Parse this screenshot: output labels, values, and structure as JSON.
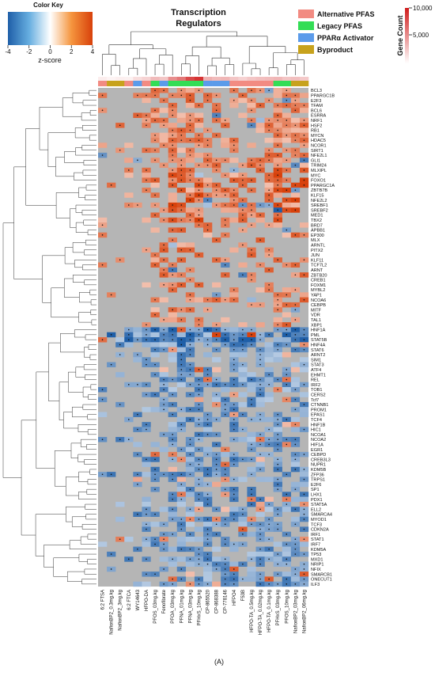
{
  "chart_data": {
    "type": "heatmap",
    "title": "Transcription Regulators",
    "panel_label": "(A)",
    "color_key": {
      "title": "Color Key",
      "label": "z-score",
      "ticks": [
        "-4",
        "-2",
        "0",
        "2",
        "4"
      ],
      "range": [
        -4,
        4
      ],
      "low_color": "#1f5fa8",
      "mid_color": "#ffffff",
      "high_color": "#d8410b"
    },
    "na_color": "#b5b5b5",
    "gene_count": {
      "label": "Gene Count",
      "ticks": [
        "10,000",
        "5,000"
      ],
      "color": "#d01c1c"
    },
    "legend": [
      {
        "label": "Alternative PFAS",
        "color": "#f28b82"
      },
      {
        "label": "Legacy PFAS",
        "color": "#33dd55"
      },
      {
        "label": "PPARα Activator",
        "color": "#5b9bea"
      },
      {
        "label": "Byproduct",
        "color": "#c7a21c"
      }
    ],
    "columns": [
      "6:2 FTSA",
      "NafionBP2_0.3mg.kg",
      "NafionBP2_3mg.kg",
      "6:2 FTCA",
      "WY14643",
      "HFPO-DA",
      "PFOS_03mg.kg",
      "Fenofibrate",
      "PFOA_03mg.kg",
      "PFNA_01mg.kg",
      "PFNA_03mg.kg",
      "PFHxS_10mg.kg",
      "CP-865520",
      "CP-868388",
      "CP-778146",
      "HFPO4",
      "F53B",
      "HFPO-TA_0.5mg.kg",
      "HFPO-TA_0.02mg.kg",
      "HFPO-TA_0.1mg.kg",
      "PFHxS_03mg.kg",
      "PFOS_10mg.kg",
      "NafionBP2_03mg.kg",
      "NafionBP2_06mg.kg"
    ],
    "column_groups": [
      "Alternative PFAS",
      "Byproduct",
      "Byproduct",
      "Alternative PFAS",
      "PPARα Activator",
      "Alternative PFAS",
      "Legacy PFAS",
      "PPARα Activator",
      "Legacy PFAS",
      "Legacy PFAS",
      "Legacy PFAS",
      "Legacy PFAS",
      "PPARα Activator",
      "PPARα Activator",
      "PPARα Activator",
      "Alternative PFAS",
      "Alternative PFAS",
      "Alternative PFAS",
      "Alternative PFAS",
      "Alternative PFAS",
      "Legacy PFAS",
      "Legacy PFAS",
      "Byproduct",
      "Byproduct"
    ],
    "column_gene_counts": [
      800,
      500,
      700,
      600,
      1500,
      2000,
      3000,
      2500,
      5000,
      6000,
      8000,
      9000,
      3500,
      3000,
      3200,
      2500,
      2000,
      2500,
      2800,
      3000,
      3200,
      2600,
      2800,
      2400
    ],
    "rows": [
      "BCL3",
      "PPARGC1B",
      "E2F3",
      "TFAM",
      "BCL6",
      "ESRRA",
      "NRF1",
      "HSF2",
      "RB1",
      "MYCN",
      "HDAC5",
      "NCOR1",
      "SIRT1",
      "NFE2L1",
      "GLI1",
      "TRIM24",
      "MLXIPL",
      "MYC",
      "FOXO1",
      "PPARGC1A",
      "ZBTB7B",
      "KLF15",
      "NFE2L2",
      "SREBF1",
      "SREBF2",
      "MED1",
      "TBX2",
      "BRD7",
      "APBB1",
      "EP300",
      "MLX",
      "ARNTL",
      "PITX2",
      "JUN",
      "KLF11",
      "TCF7L2",
      "ARNT",
      "ZBTB20",
      "CREB1",
      "FOXM1",
      "MYBL2",
      "YAP1",
      "NCOA6",
      "CEBPB",
      "MITF",
      "VDR",
      "TAL1",
      "XBP1",
      "HNF1A",
      "PML",
      "STAT5B",
      "HNF4A",
      "STAT6",
      "ARNT2",
      "SIM1",
      "STAT3",
      "ATF4",
      "EHMT1",
      "REL",
      "IRF2",
      "TOB1",
      "CERS2",
      "Tcf7",
      "CTNNB1",
      "PROM1",
      "EPAS1",
      "TCF4",
      "HNF1B",
      "HIC1",
      "NCOA1",
      "NCOA2",
      "HIF1A",
      "EGR1",
      "CEBPD",
      "CREB3L3",
      "NUPR1",
      "KDM5B",
      "ZFP36",
      "TRPS1",
      "E2F6",
      "SP1",
      "LHX1",
      "PDX1",
      "STAT5A",
      "ELL2",
      "SMARCA4",
      "MYOD1",
      "TCF3",
      "CDKN2A",
      "IRF1",
      "STAT1",
      "IRF7",
      "KDM5A",
      "TP53",
      "MXD1",
      "NRIP1",
      "NFIX",
      "SMARCB1",
      "ONECUT1",
      "ILF3"
    ]
  }
}
